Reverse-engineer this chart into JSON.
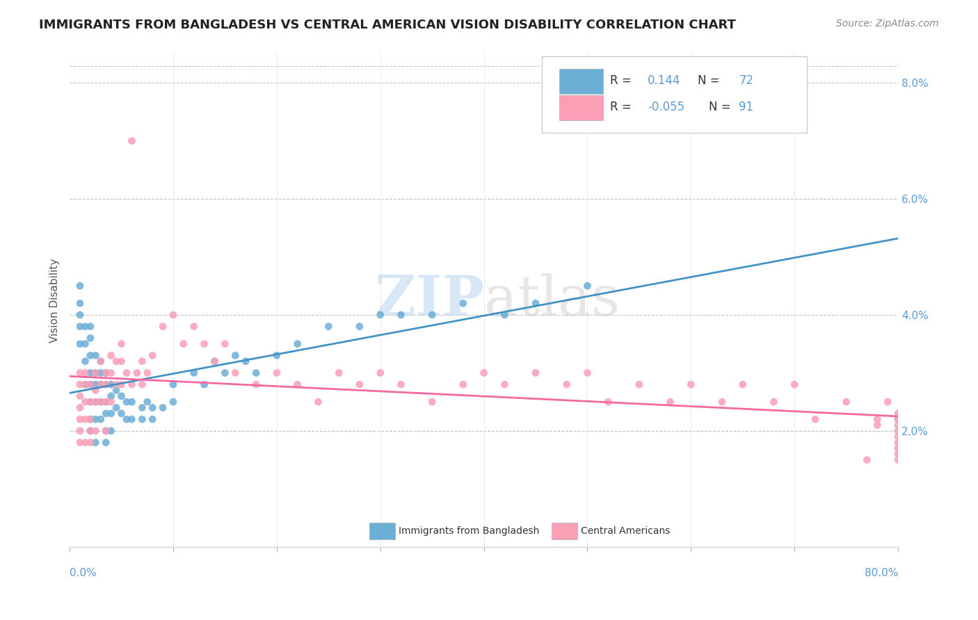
{
  "title": "IMMIGRANTS FROM BANGLADESH VS CENTRAL AMERICAN VISION DISABILITY CORRELATION CHART",
  "source": "Source: ZipAtlas.com",
  "ylabel": "Vision Disability",
  "right_yticks": [
    "2.0%",
    "4.0%",
    "6.0%",
    "8.0%"
  ],
  "right_ytick_vals": [
    0.02,
    0.04,
    0.06,
    0.08
  ],
  "blue_color": "#6baed6",
  "pink_color": "#fa9fb5",
  "blue_line_color": "#4292c6",
  "pink_line_color": "#f768a1",
  "watermark_zip": "ZIP",
  "watermark_atlas": "atlas",
  "xlim": [
    0.0,
    0.8
  ],
  "ylim": [
    0.0,
    0.085
  ],
  "blue_scatter_x": [
    0.01,
    0.01,
    0.01,
    0.01,
    0.01,
    0.015,
    0.015,
    0.015,
    0.015,
    0.02,
    0.02,
    0.02,
    0.02,
    0.02,
    0.02,
    0.02,
    0.02,
    0.025,
    0.025,
    0.025,
    0.025,
    0.025,
    0.025,
    0.03,
    0.03,
    0.03,
    0.03,
    0.03,
    0.035,
    0.035,
    0.035,
    0.035,
    0.035,
    0.035,
    0.04,
    0.04,
    0.04,
    0.04,
    0.045,
    0.045,
    0.05,
    0.05,
    0.055,
    0.055,
    0.06,
    0.06,
    0.07,
    0.07,
    0.075,
    0.08,
    0.08,
    0.09,
    0.1,
    0.1,
    0.12,
    0.13,
    0.14,
    0.15,
    0.16,
    0.17,
    0.18,
    0.2,
    0.22,
    0.25,
    0.28,
    0.3,
    0.32,
    0.35,
    0.38,
    0.42,
    0.45,
    0.5
  ],
  "blue_scatter_y": [
    0.045,
    0.042,
    0.04,
    0.038,
    0.035,
    0.038,
    0.035,
    0.032,
    0.028,
    0.038,
    0.036,
    0.033,
    0.03,
    0.028,
    0.025,
    0.022,
    0.02,
    0.033,
    0.03,
    0.028,
    0.025,
    0.022,
    0.018,
    0.032,
    0.03,
    0.028,
    0.025,
    0.022,
    0.03,
    0.028,
    0.025,
    0.023,
    0.02,
    0.018,
    0.028,
    0.026,
    0.023,
    0.02,
    0.027,
    0.024,
    0.026,
    0.023,
    0.025,
    0.022,
    0.025,
    0.022,
    0.024,
    0.022,
    0.025,
    0.024,
    0.022,
    0.024,
    0.028,
    0.025,
    0.03,
    0.028,
    0.032,
    0.03,
    0.033,
    0.032,
    0.03,
    0.033,
    0.035,
    0.038,
    0.038,
    0.04,
    0.04,
    0.04,
    0.042,
    0.04,
    0.042,
    0.045
  ],
  "pink_scatter_x": [
    0.01,
    0.01,
    0.01,
    0.01,
    0.01,
    0.01,
    0.01,
    0.015,
    0.015,
    0.015,
    0.015,
    0.015,
    0.02,
    0.02,
    0.02,
    0.02,
    0.02,
    0.025,
    0.025,
    0.025,
    0.025,
    0.03,
    0.03,
    0.03,
    0.035,
    0.035,
    0.035,
    0.035,
    0.04,
    0.04,
    0.04,
    0.045,
    0.045,
    0.05,
    0.05,
    0.05,
    0.055,
    0.06,
    0.06,
    0.065,
    0.07,
    0.07,
    0.075,
    0.08,
    0.09,
    0.1,
    0.11,
    0.12,
    0.13,
    0.14,
    0.15,
    0.16,
    0.18,
    0.2,
    0.22,
    0.24,
    0.26,
    0.28,
    0.3,
    0.32,
    0.35,
    0.38,
    0.4,
    0.42,
    0.45,
    0.48,
    0.5,
    0.52,
    0.55,
    0.58,
    0.6,
    0.63,
    0.65,
    0.68,
    0.7,
    0.72,
    0.75,
    0.78,
    0.79,
    0.8,
    0.8,
    0.8,
    0.8,
    0.8,
    0.8,
    0.8,
    0.8,
    0.8,
    0.8,
    0.78,
    0.77
  ],
  "pink_scatter_y": [
    0.03,
    0.028,
    0.026,
    0.024,
    0.022,
    0.02,
    0.018,
    0.03,
    0.028,
    0.025,
    0.022,
    0.018,
    0.028,
    0.025,
    0.022,
    0.02,
    0.018,
    0.03,
    0.027,
    0.025,
    0.02,
    0.032,
    0.028,
    0.025,
    0.03,
    0.028,
    0.025,
    0.02,
    0.033,
    0.03,
    0.025,
    0.032,
    0.028,
    0.035,
    0.032,
    0.028,
    0.03,
    0.07,
    0.028,
    0.03,
    0.032,
    0.028,
    0.03,
    0.033,
    0.038,
    0.04,
    0.035,
    0.038,
    0.035,
    0.032,
    0.035,
    0.03,
    0.028,
    0.03,
    0.028,
    0.025,
    0.03,
    0.028,
    0.03,
    0.028,
    0.025,
    0.028,
    0.03,
    0.028,
    0.03,
    0.028,
    0.03,
    0.025,
    0.028,
    0.025,
    0.028,
    0.025,
    0.028,
    0.025,
    0.028,
    0.022,
    0.025,
    0.022,
    0.025,
    0.022,
    0.02,
    0.018,
    0.016,
    0.015,
    0.017,
    0.019,
    0.021,
    0.022,
    0.023,
    0.021,
    0.015
  ]
}
